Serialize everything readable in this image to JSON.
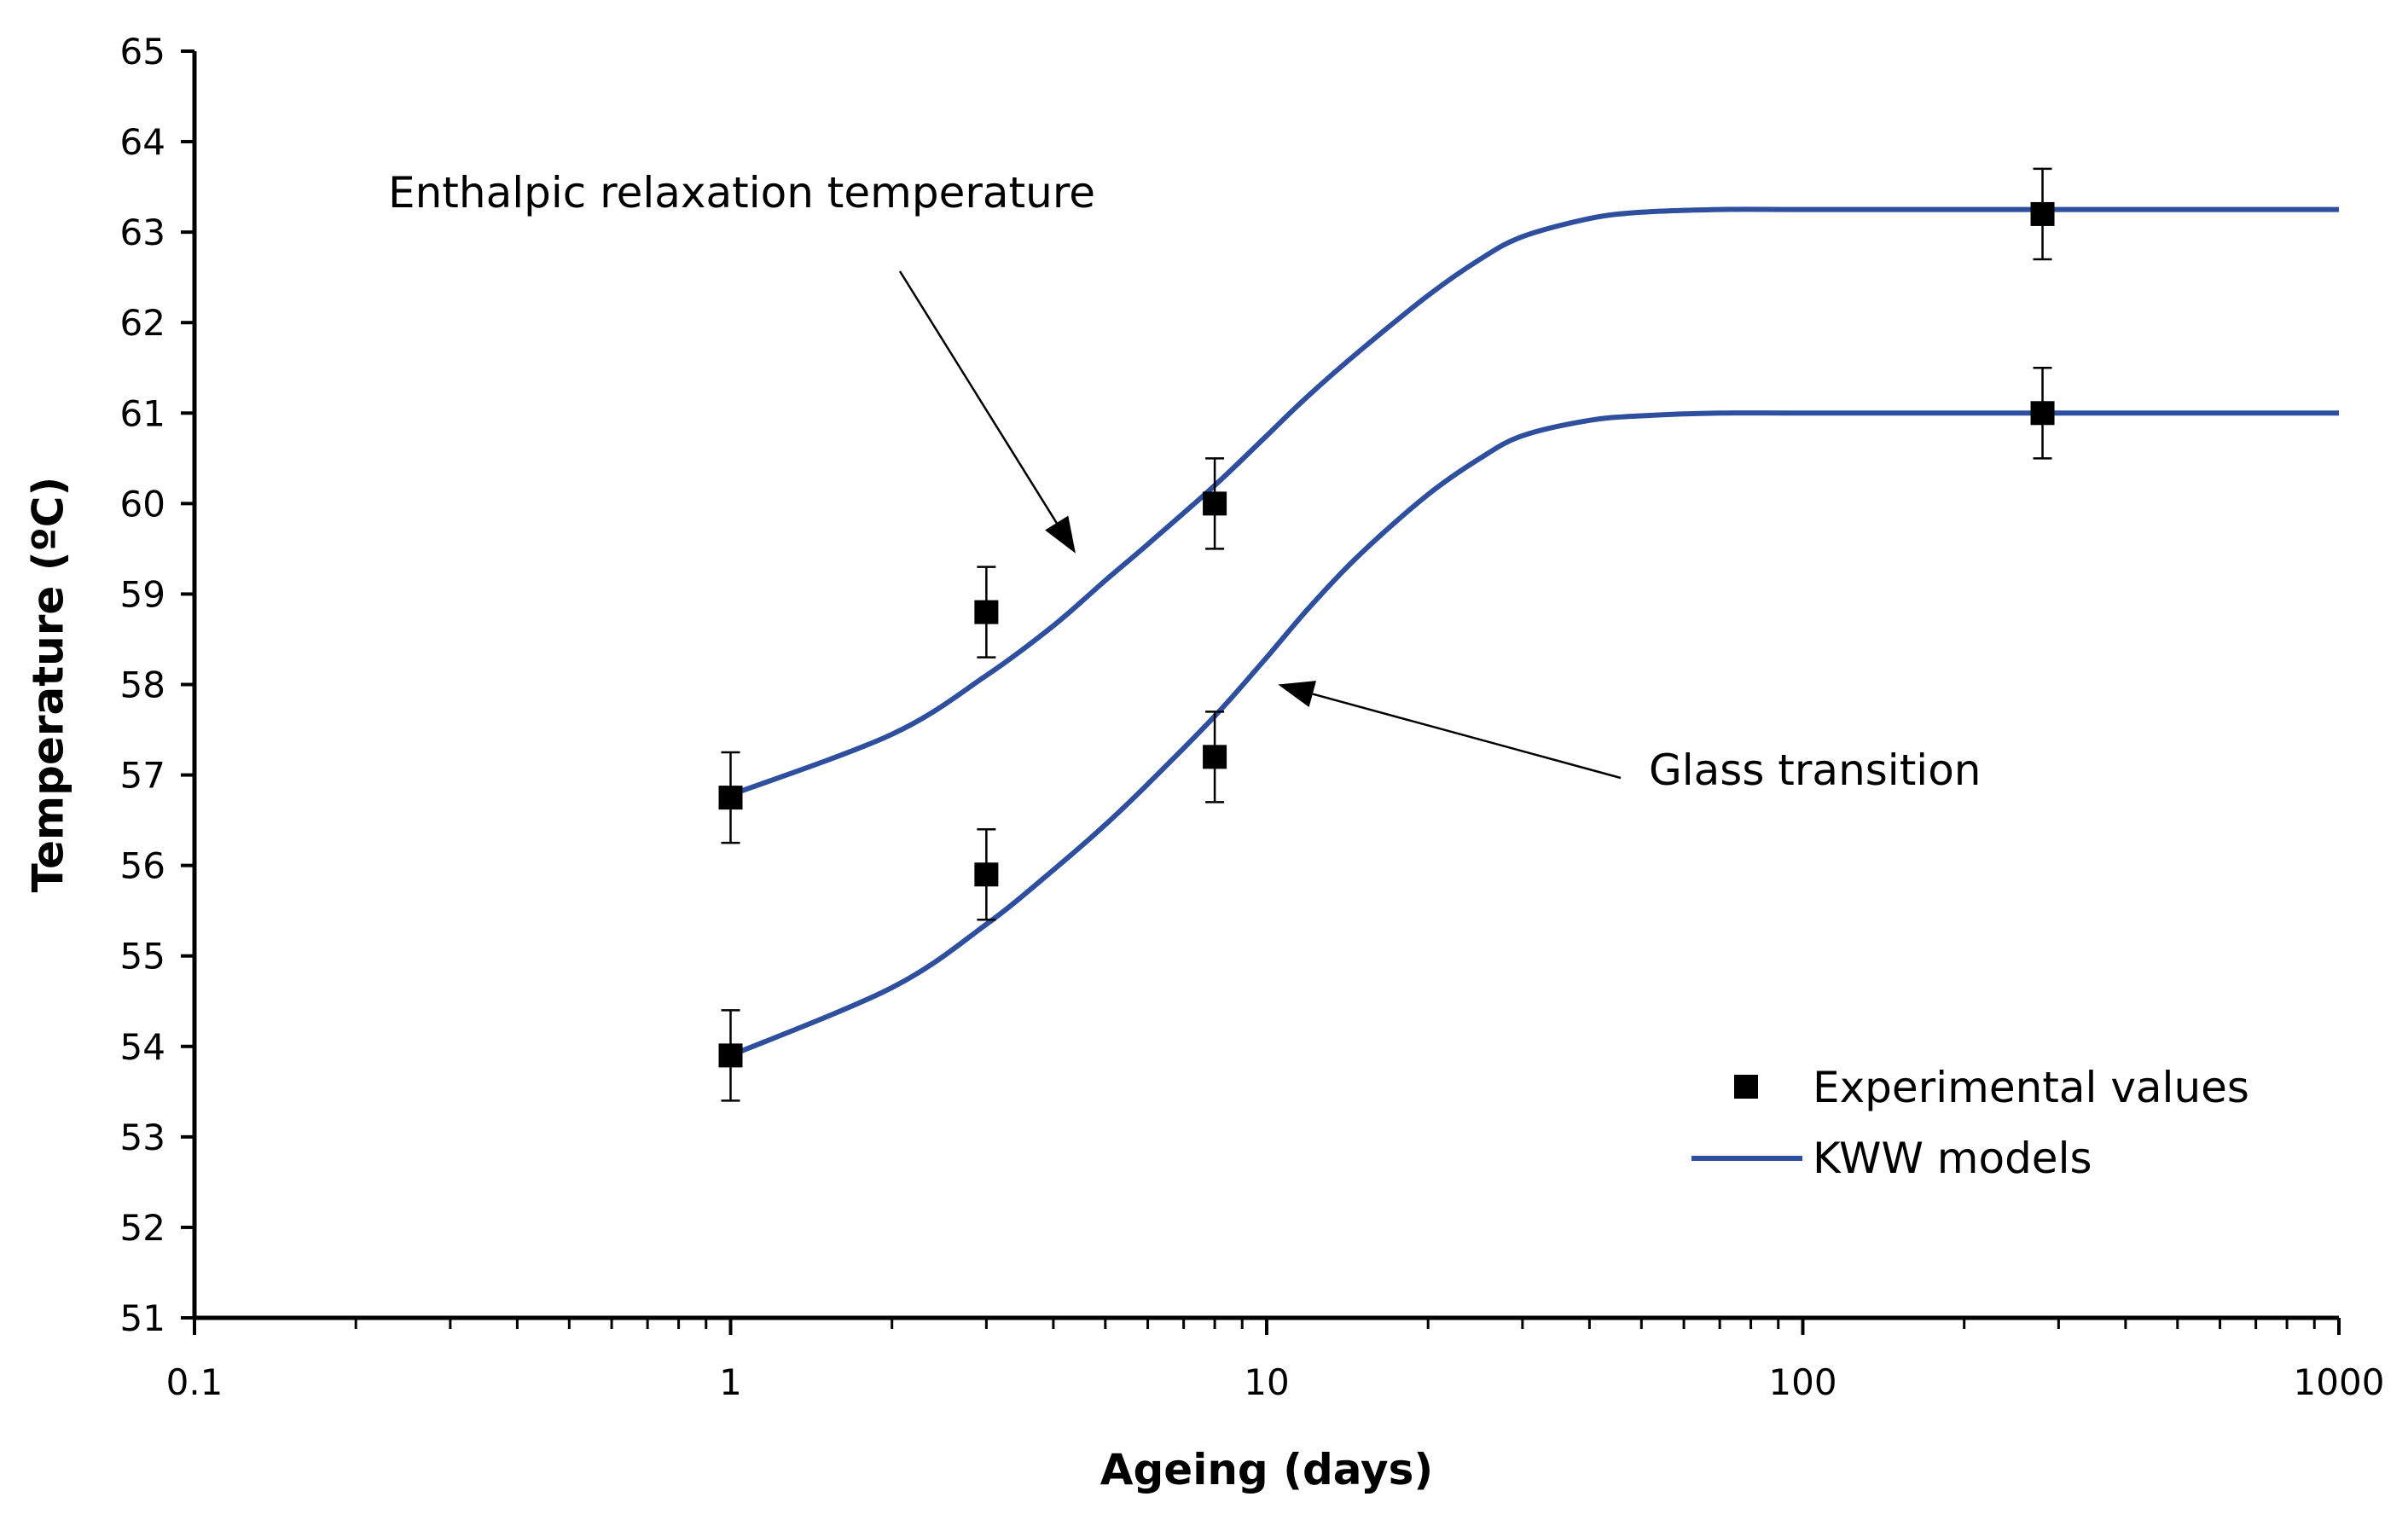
{
  "chart_data": {
    "type": "scatter",
    "xscale": "log",
    "xlabel": "Ageing (days)",
    "ylabel": "Temperature (ºC)",
    "xlim": [
      0.1,
      1000
    ],
    "ylim": [
      51,
      65
    ],
    "xticks": [
      "0.1",
      "1",
      "10",
      "100",
      "1000"
    ],
    "yticks": [
      "51",
      "52",
      "53",
      "54",
      "55",
      "56",
      "57",
      "58",
      "59",
      "60",
      "61",
      "62",
      "63",
      "64",
      "65"
    ],
    "series": [
      {
        "name": "Experimental values",
        "kind": "markers",
        "group": "Enthalpic relaxation temperature",
        "x": [
          1,
          3,
          8,
          280
        ],
        "y": [
          56.75,
          58.8,
          60.0,
          63.2
        ],
        "err": [
          0.5,
          0.5,
          0.5,
          0.5
        ]
      },
      {
        "name": "Experimental values",
        "kind": "markers",
        "group": "Glass transition",
        "x": [
          1,
          3,
          8,
          280
        ],
        "y": [
          53.9,
          55.9,
          57.2,
          61.0
        ],
        "err": [
          0.5,
          0.5,
          0.5,
          0.5
        ]
      },
      {
        "name": "KWW models",
        "kind": "line",
        "group": "Enthalpic relaxation temperature",
        "x": [
          1,
          2,
          3,
          4,
          5,
          6,
          8,
          10,
          12,
          15,
          20,
          25,
          30,
          40,
          50,
          70,
          100,
          200,
          500,
          1000
        ],
        "y": [
          56.78,
          57.45,
          58.1,
          58.65,
          59.15,
          59.55,
          60.2,
          60.75,
          61.2,
          61.7,
          62.3,
          62.7,
          62.95,
          63.15,
          63.22,
          63.25,
          63.25,
          63.25,
          63.25,
          63.25
        ]
      },
      {
        "name": "KWW models",
        "kind": "line",
        "group": "Glass transition",
        "x": [
          1,
          2,
          3,
          4,
          5,
          6,
          8,
          10,
          12,
          15,
          20,
          25,
          30,
          40,
          50,
          70,
          100,
          200,
          500,
          1000
        ],
        "y": [
          53.9,
          54.65,
          55.35,
          55.95,
          56.45,
          56.9,
          57.65,
          58.3,
          58.85,
          59.45,
          60.1,
          60.5,
          60.75,
          60.92,
          60.97,
          61.0,
          61.0,
          61.0,
          61.0,
          61.0
        ]
      }
    ],
    "annotations": [
      {
        "text": "Enthalpic relaxation temperature",
        "arrow_to": [
          4.4,
          59.45
        ]
      },
      {
        "text": "Glass transition",
        "arrow_to": [
          10.5,
          58.0
        ]
      }
    ],
    "legend": {
      "position": "bottom-right",
      "items": [
        "Experimental values",
        "KWW models"
      ]
    },
    "colors": {
      "line": "#2E4F9E",
      "marker": "#000000",
      "axis": "#000000"
    }
  }
}
